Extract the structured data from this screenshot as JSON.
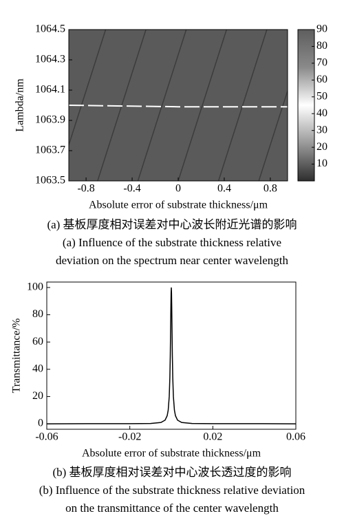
{
  "chart_data": [
    {
      "type": "heatmap",
      "x_label": "Absolute error of substrate thickness/μm",
      "y_label": "Lambda/nm",
      "xlim": [
        -0.95,
        0.95
      ],
      "xticks": [
        -0.8,
        -0.4,
        0,
        0.4,
        0.8
      ],
      "ylim": [
        1063.5,
        1064.5
      ],
      "yticks": [
        1063.5,
        1063.7,
        1063.9,
        1064.1,
        1064.3,
        1064.5
      ],
      "field_color": "#5a5a5a",
      "series": [
        {
          "color": "#3c3c3c",
          "x": [
            -1.05,
            -0.63
          ],
          "values": [
            1063.5,
            1064.5
          ]
        },
        {
          "color": "#3c3c3c",
          "x": [
            -0.7,
            -0.28
          ],
          "values": [
            1063.5,
            1064.5
          ]
        },
        {
          "color": "#3c3c3c",
          "x": [
            -0.35,
            0.07
          ],
          "values": [
            1063.5,
            1064.5
          ]
        },
        {
          "color": "#3c3c3c",
          "x": [
            0.0,
            0.42
          ],
          "values": [
            1063.5,
            1064.5
          ]
        },
        {
          "color": "#3c3c3c",
          "x": [
            0.35,
            0.77
          ],
          "values": [
            1063.5,
            1064.5
          ]
        },
        {
          "color": "#3c3c3c",
          "x": [
            0.7,
            1.12
          ],
          "values": [
            1063.5,
            1064.5
          ]
        },
        {
          "color": "#ffffff",
          "dashed": true,
          "x": [
            -0.95,
            0,
            0.95
          ],
          "values": [
            1064.0,
            1063.99,
            1063.99
          ]
        }
      ],
      "colorbar": {
        "lim": [
          0,
          90
        ],
        "ticks": [
          10,
          20,
          30,
          40,
          50,
          60,
          70,
          80,
          90
        ],
        "colors": [
          "#2e2e2e",
          "#9a9a9a",
          "#ffffff",
          "#8a8a8a",
          "#5e5e5e"
        ]
      },
      "caption": [
        "(a) 基板厚度相对误差对中心波长附近光谱的影响",
        "(a) Influence of the substrate thickness relative",
        "deviation on the spectrum near center wavelength"
      ]
    },
    {
      "type": "line",
      "x_label": "Absolute error of substrate thickness/μm",
      "y_label": "Transmittance/%",
      "xlim": [
        -0.06,
        0.06
      ],
      "xticks": [
        -0.06,
        -0.02,
        0.02,
        0.06
      ],
      "ylim": [
        -4,
        104
      ],
      "yticks": [
        0,
        20,
        40,
        60,
        80,
        100
      ],
      "series": [
        {
          "color": "#000000",
          "x": [
            -0.06,
            -0.04,
            -0.02,
            -0.01,
            -0.005,
            -0.003,
            -0.002,
            -0.0015,
            -0.001,
            -0.0007,
            -0.0005,
            -0.0003,
            -0.0002,
            -0.0001,
            0,
            0.0001,
            0.0002,
            0.0003,
            0.0005,
            0.0007,
            0.001,
            0.0015,
            0.002,
            0.003,
            0.005,
            0.01,
            0.02,
            0.04,
            0.06
          ],
          "values": [
            0,
            0.1,
            0.1,
            0.2,
            1,
            2.7,
            5.9,
            10,
            20,
            34,
            50,
            74,
            86,
            96,
            100,
            96,
            86,
            74,
            50,
            34,
            20,
            10,
            5.9,
            2.7,
            1,
            0.2,
            0.1,
            0.1,
            0
          ]
        }
      ],
      "caption": [
        "(b) 基板厚度相对误差对中心波长透过度的影响",
        "(b) Influence of the substrate thickness relative deviation",
        "on the transmittance of the center wavelength"
      ]
    }
  ]
}
